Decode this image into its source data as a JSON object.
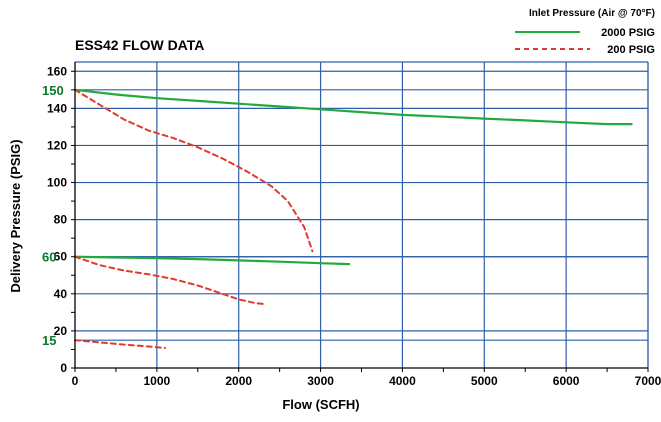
{
  "chart_data": {
    "type": "line",
    "title": "ESS42 FLOW DATA",
    "xlabel": "Flow (SCFH)",
    "ylabel": "Delivery Pressure (PSIG)",
    "xlim": [
      0,
      7000
    ],
    "ylim": [
      0,
      165
    ],
    "grid": true,
    "legend_title": "Inlet Pressure (Air @ 70°F)",
    "legend_position": "top-right",
    "x_ticks": [
      0,
      1000,
      2000,
      3000,
      4000,
      5000,
      6000,
      7000
    ],
    "x_tick_labels": [
      "0",
      "1000",
      "2000",
      "3000",
      "4000",
      "5000",
      "6000",
      "7000"
    ],
    "y_ticks": [
      0,
      20,
      40,
      60,
      80,
      100,
      120,
      140,
      160
    ],
    "y_tick_labels": [
      "0",
      "20",
      "40",
      "60",
      "80",
      "100",
      "120",
      "140",
      "160"
    ],
    "highlight_y_ticks": [
      15,
      60,
      150
    ],
    "highlight_y_labels": [
      "15",
      "60",
      "150"
    ],
    "highlight_color": "#0a7a2a",
    "series": [
      {
        "name": "2000 PSIG",
        "color": "#22aa3c",
        "style": "solid",
        "lines": [
          {
            "x": [
              0,
              500,
              1000,
              1500,
              2000,
              2500,
              3000,
              3500,
              4000,
              4500,
              5000,
              5500,
              6000,
              6500,
              6800
            ],
            "y": [
              150,
              147.5,
              145.5,
              144,
              142.5,
              141,
              139.5,
              138,
              136.5,
              135.5,
              134.5,
              133.5,
              132.5,
              131.5,
              131.5
            ]
          },
          {
            "x": [
              0,
              500,
              1000,
              1500,
              2000,
              2500,
              3000,
              3350
            ],
            "y": [
              60,
              59.6,
              59.2,
              58.7,
              58,
              57.3,
              56.5,
              56
            ]
          }
        ]
      },
      {
        "name": "200 PSIG",
        "color": "#e03a2f",
        "style": "dashed",
        "lines": [
          {
            "x": [
              0,
              300,
              600,
              900,
              1200,
              1500,
              1800,
              2100,
              2400,
              2600,
              2800,
              2900
            ],
            "y": [
              150,
              142,
              134,
              128,
              124,
              119,
              113,
              106,
              98,
              90,
              76,
              63
            ]
          },
          {
            "x": [
              0,
              300,
              600,
              900,
              1200,
              1500,
              1800,
              2000,
              2200,
              2300
            ],
            "y": [
              60,
              55.5,
              52.5,
              50.5,
              48,
              44.5,
              40,
              37,
              35,
              34.5
            ]
          },
          {
            "x": [
              0,
              300,
              600,
              900,
              1100
            ],
            "y": [
              15,
              13.8,
              12.6,
              11.6,
              10.8
            ]
          }
        ]
      }
    ]
  }
}
